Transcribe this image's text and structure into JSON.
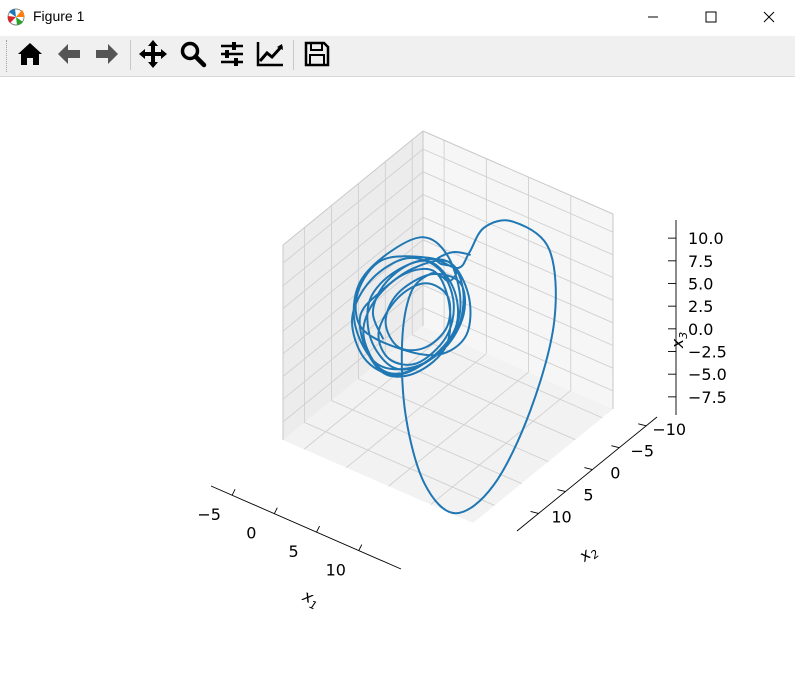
{
  "window": {
    "title": "Figure 1",
    "controls": [
      "minimize-icon",
      "maximize-icon",
      "close-icon"
    ]
  },
  "toolbar": {
    "buttons": [
      {
        "name": "home-button",
        "icon": "home-icon"
      },
      {
        "name": "back-button",
        "icon": "arrow-left-icon"
      },
      {
        "name": "forward-button",
        "icon": "arrow-right-icon"
      },
      {
        "name": "pan-button",
        "icon": "move-icon"
      },
      {
        "name": "zoom-button",
        "icon": "magnifier-icon"
      },
      {
        "name": "configure-subplots-button",
        "icon": "sliders-icon"
      },
      {
        "name": "edit-axes-button",
        "icon": "line-chart-icon"
      },
      {
        "name": "save-button",
        "icon": "floppy-disk-icon"
      }
    ],
    "icon_color": "#000000"
  },
  "chart_data": {
    "type": "line",
    "projection": "3d",
    "title": "",
    "xlabel": "x_1",
    "ylabel": "x_2",
    "zlabel": "x_3",
    "xlim": [
      -7.5,
      15
    ],
    "ylim": [
      -12,
      14
    ],
    "zlim": [
      -9.5,
      12
    ],
    "xticks": [
      -5,
      0,
      5,
      10
    ],
    "yticks": [
      -10,
      -5,
      0,
      5,
      10
    ],
    "zticks": [
      -7.5,
      -5.0,
      -2.5,
      0.0,
      2.5,
      5.0,
      7.5,
      10.0
    ],
    "xtick_labels": [
      "−5",
      "0",
      "5",
      "10"
    ],
    "ytick_labels": [
      "−10",
      "−5",
      "0",
      "5",
      "10"
    ],
    "ztick_labels": [
      "−7.5",
      "−5.0",
      "−2.5",
      "0.0",
      "2.5",
      "5.0",
      "7.5",
      "10.0"
    ],
    "grid": true,
    "series": [
      {
        "color": "#1f77b4",
        "description_points": "approximate trajectory (x1, x2, x3) read from the figure",
        "points": [
          [
            4.5,
            -2.0,
            8.0
          ],
          [
            5.5,
            0.0,
            9.5
          ],
          [
            5.0,
            2.0,
            10.5
          ],
          [
            3.8,
            3.0,
            9.8
          ],
          [
            3.5,
            2.0,
            8.6
          ],
          [
            4.2,
            0.8,
            8.0
          ],
          [
            5.0,
            1.5,
            7.8
          ],
          [
            4.6,
            2.2,
            7.2
          ],
          [
            3.0,
            1.0,
            6.5
          ],
          [
            1.0,
            0.0,
            5.5
          ],
          [
            0.0,
            2.0,
            4.0
          ],
          [
            1.5,
            6.0,
            1.0
          ],
          [
            4.5,
            10.0,
            -4.0
          ],
          [
            8.0,
            12.0,
            -9.0
          ],
          [
            11.0,
            11.0,
            -11.5
          ],
          [
            13.0,
            7.0,
            -9.5
          ],
          [
            13.5,
            1.0,
            -4.0
          ],
          [
            12.5,
            -5.0,
            2.5
          ],
          [
            10.0,
            -8.0,
            8.0
          ],
          [
            7.0,
            -6.0,
            10.8
          ],
          [
            5.5,
            -3.0,
            11.0
          ],
          [
            5.0,
            -1.0,
            9.0
          ],
          [
            3.0,
            -2.0,
            6.0
          ],
          [
            -1.0,
            -3.0,
            5.0
          ],
          [
            -4.0,
            1.0,
            5.5
          ],
          [
            -5.0,
            4.0,
            3.0
          ],
          [
            -4.0,
            5.0,
            0.0
          ],
          [
            -1.0,
            3.0,
            -2.0
          ],
          [
            2.0,
            0.0,
            -3.0
          ],
          [
            4.0,
            -2.0,
            -1.0
          ],
          [
            3.0,
            -4.0,
            2.0
          ],
          [
            0.0,
            -5.0,
            4.0
          ],
          [
            -3.0,
            -3.0,
            3.0
          ],
          [
            -5.0,
            0.0,
            1.0
          ],
          [
            -6.0,
            2.0,
            -1.0
          ],
          [
            -4.0,
            4.0,
            -3.0
          ],
          [
            -1.0,
            5.0,
            -4.0
          ],
          [
            2.0,
            4.0,
            -3.0
          ],
          [
            3.5,
            1.0,
            -1.0
          ],
          [
            2.0,
            -2.0,
            1.5
          ],
          [
            -1.0,
            -4.0,
            3.0
          ],
          [
            -4.0,
            -3.0,
            2.0
          ],
          [
            -5.5,
            0.0,
            0.0
          ],
          [
            -5.0,
            3.0,
            -2.0
          ],
          [
            -2.0,
            5.0,
            -3.5
          ],
          [
            1.0,
            5.0,
            -3.0
          ],
          [
            3.0,
            2.0,
            -1.5
          ],
          [
            3.5,
            -1.0,
            0.5
          ],
          [
            1.5,
            -3.5,
            2.5
          ],
          [
            -2.0,
            -4.5,
            3.5
          ],
          [
            -4.5,
            -2.0,
            2.5
          ],
          [
            -5.5,
            1.0,
            0.5
          ],
          [
            -3.5,
            4.0,
            -1.5
          ],
          [
            0.0,
            5.5,
            -2.5
          ],
          [
            2.5,
            4.0,
            -2.0
          ],
          [
            4.0,
            1.0,
            0.0
          ],
          [
            3.0,
            -2.5,
            2.0
          ],
          [
            0.0,
            -5.0,
            4.5
          ],
          [
            -3.0,
            -5.0,
            5.5
          ],
          [
            -5.5,
            -2.0,
            4.0
          ],
          [
            -6.5,
            1.5,
            2.0
          ],
          [
            -5.0,
            4.5,
            -0.5
          ],
          [
            -1.5,
            6.0,
            -2.5
          ],
          [
            2.0,
            5.0,
            -2.0
          ],
          [
            4.0,
            2.0,
            -0.5
          ],
          [
            4.0,
            -1.5,
            1.5
          ],
          [
            2.0,
            -4.0,
            3.0
          ],
          [
            -1.5,
            -4.0,
            2.5
          ],
          [
            -3.5,
            -1.0,
            1.0
          ],
          [
            -3.0,
            2.0,
            -0.5
          ],
          [
            -0.5,
            3.5,
            -1.5
          ],
          [
            2.0,
            2.5,
            -1.0
          ],
          [
            3.0,
            0.0,
            0.5
          ],
          [
            1.5,
            -2.5,
            2.0
          ],
          [
            -1.5,
            -3.0,
            2.0
          ],
          [
            -3.5,
            -1.0,
            0.5
          ],
          [
            -3.5,
            2.5,
            -1.5
          ],
          [
            -1.0,
            4.5,
            -2.5
          ],
          [
            2.0,
            4.0,
            -2.0
          ],
          [
            3.5,
            1.0,
            0.0
          ],
          [
            2.5,
            -2.0,
            2.0
          ],
          [
            -0.5,
            -4.0,
            3.5
          ],
          [
            -4.0,
            -3.5,
            3.5
          ],
          [
            -6.0,
            0.0,
            2.0
          ],
          [
            -6.0,
            3.5,
            -0.5
          ],
          [
            -3.0,
            6.0,
            -2.5
          ],
          [
            1.0,
            6.5,
            -2.5
          ],
          [
            3.5,
            4.0,
            -1.0
          ],
          [
            4.5,
            0.5,
            1.0
          ],
          [
            3.0,
            -3.0,
            3.0
          ],
          [
            0.0,
            -5.0,
            4.0
          ],
          [
            -3.5,
            -4.0,
            3.0
          ],
          [
            -5.0,
            -1.0,
            1.5
          ],
          [
            -4.5,
            2.0,
            0.0
          ],
          [
            -2.0,
            4.0,
            -1.0
          ]
        ]
      }
    ]
  }
}
